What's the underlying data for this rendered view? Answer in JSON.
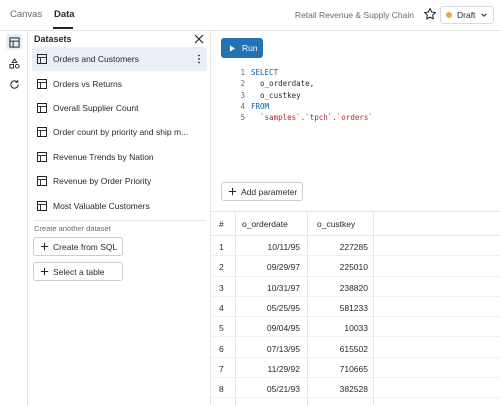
{
  "topbar": {
    "tabs": [
      "Canvas",
      "Data"
    ],
    "active_tab": "Data",
    "dashboard_title": "Retail Revenue & Supply Chain",
    "status": "Draft",
    "status_color": "#f2a93b"
  },
  "rail": {
    "icons": [
      "dataset-icon",
      "shapes-icon",
      "refresh-icon"
    ]
  },
  "datasets": {
    "title": "Datasets",
    "items": [
      "Orders and Customers",
      "Orders vs Returns",
      "Overall Supplier Count",
      "Order count by priority and ship m...",
      "Revenue Trends by Nation",
      "Revenue by Order Priority",
      "Most Valuable Customers"
    ],
    "selected_index": 0,
    "create_label": "Create another dataset",
    "create_from_sql": "Create from SQL",
    "select_table": "Select a table"
  },
  "editor": {
    "run_label": "Run",
    "run_color": "#2272b4",
    "lines": [
      {
        "num": "1",
        "text": "SELECT",
        "kind": "kw"
      },
      {
        "num": "2",
        "text": "  o_orderdate,",
        "kind": "id"
      },
      {
        "num": "3",
        "text": "  o_custkey",
        "kind": "id"
      },
      {
        "num": "4",
        "text": "FROM",
        "kind": "kw"
      },
      {
        "num": "5",
        "text": "  `samples`.`tpch`.`orders`",
        "kind": "str"
      }
    ],
    "add_parameter": "Add parameter"
  },
  "results": {
    "columns": [
      "#",
      "o_orderdate",
      "o_custkey"
    ],
    "rows": [
      [
        "1",
        "10/11/95",
        "227285"
      ],
      [
        "2",
        "09/29/97",
        "225010"
      ],
      [
        "3",
        "10/31/97",
        "238820"
      ],
      [
        "4",
        "05/25/95",
        "581233"
      ],
      [
        "5",
        "09/04/95",
        "10033"
      ],
      [
        "6",
        "07/13/95",
        "615502"
      ],
      [
        "7",
        "11/29/92",
        "710665"
      ],
      [
        "8",
        "05/21/93",
        "382528"
      ],
      [
        "9",
        "03/06/98",
        "122618"
      ]
    ]
  }
}
